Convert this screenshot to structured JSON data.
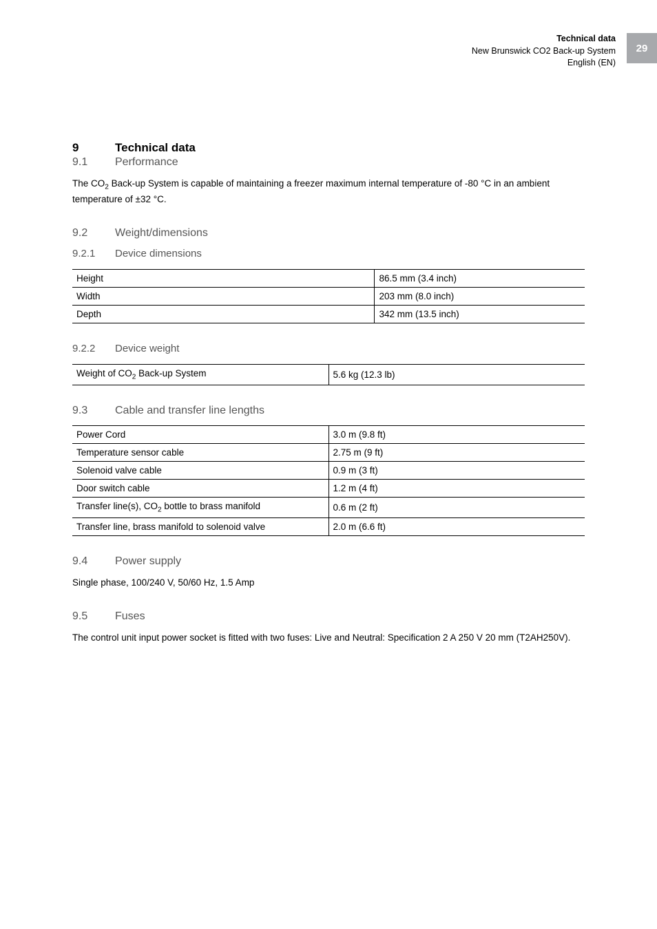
{
  "page_number": "29",
  "header": {
    "line1": "Technical data",
    "line2": "New Brunswick CO2 Back-up System",
    "line3": "English (EN)"
  },
  "sections": {
    "s9": {
      "num": "9",
      "title": "Technical data"
    },
    "s9_1": {
      "num": "9.1",
      "title": "Performance"
    },
    "s9_1_text_a": "The CO",
    "s9_1_text_b": " Back-up System is capable of maintaining a freezer maximum internal temperature of -80 °C in an ambient temperature of ±32 °C.",
    "s9_2": {
      "num": "9.2",
      "title": "Weight/dimensions"
    },
    "s9_2_1": {
      "num": "9.2.1",
      "title": "Device dimensions"
    },
    "dim_table": {
      "rows": [
        {
          "label": "Height",
          "value": "86.5 mm (3.4 inch)"
        },
        {
          "label": "Width",
          "value": "203 mm (8.0 inch)"
        },
        {
          "label": "Depth",
          "value": "342 mm (13.5 inch)"
        }
      ],
      "col1_width": "59%",
      "col2_width": "41%"
    },
    "s9_2_2": {
      "num": "9.2.2",
      "title": "Device weight"
    },
    "weight_table": {
      "label_a": "Weight of CO",
      "label_b": " Back-up System",
      "value": "5.6 kg (12.3 lb)",
      "col1_width": "50%",
      "col2_width": "50%"
    },
    "s9_3": {
      "num": "9.3",
      "title": "Cable and transfer line lengths"
    },
    "cable_table": {
      "rows": [
        {
          "label": "Power Cord",
          "value": "3.0 m (9.8 ft)",
          "has_sub": false
        },
        {
          "label": "Temperature sensor cable",
          "value": "2.75 m (9 ft)",
          "has_sub": false
        },
        {
          "label": "Solenoid valve cable",
          "value": "0.9 m (3 ft)",
          "has_sub": false
        },
        {
          "label": "Door switch cable",
          "value": "1.2 m (4 ft)",
          "has_sub": false
        },
        {
          "label_a": "Transfer line(s), CO",
          "label_b": " bottle to brass manifold",
          "value": "0.6 m (2 ft)",
          "has_sub": true
        },
        {
          "label": "Transfer line, brass manifold to solenoid valve",
          "value": "2.0 m (6.6 ft)",
          "has_sub": false
        }
      ],
      "col1_width": "50%",
      "col2_width": "50%"
    },
    "s9_4": {
      "num": "9.4",
      "title": "Power supply"
    },
    "s9_4_text": "Single phase, 100/240 V, 50/60 Hz, 1.5 Amp",
    "s9_5": {
      "num": "9.5",
      "title": "Fuses"
    },
    "s9_5_text": "The control unit input power socket is fitted with two fuses: Live and Neutral: Specification 2 A 250 V 20 mm (T2AH250V)."
  },
  "sub2": "2"
}
